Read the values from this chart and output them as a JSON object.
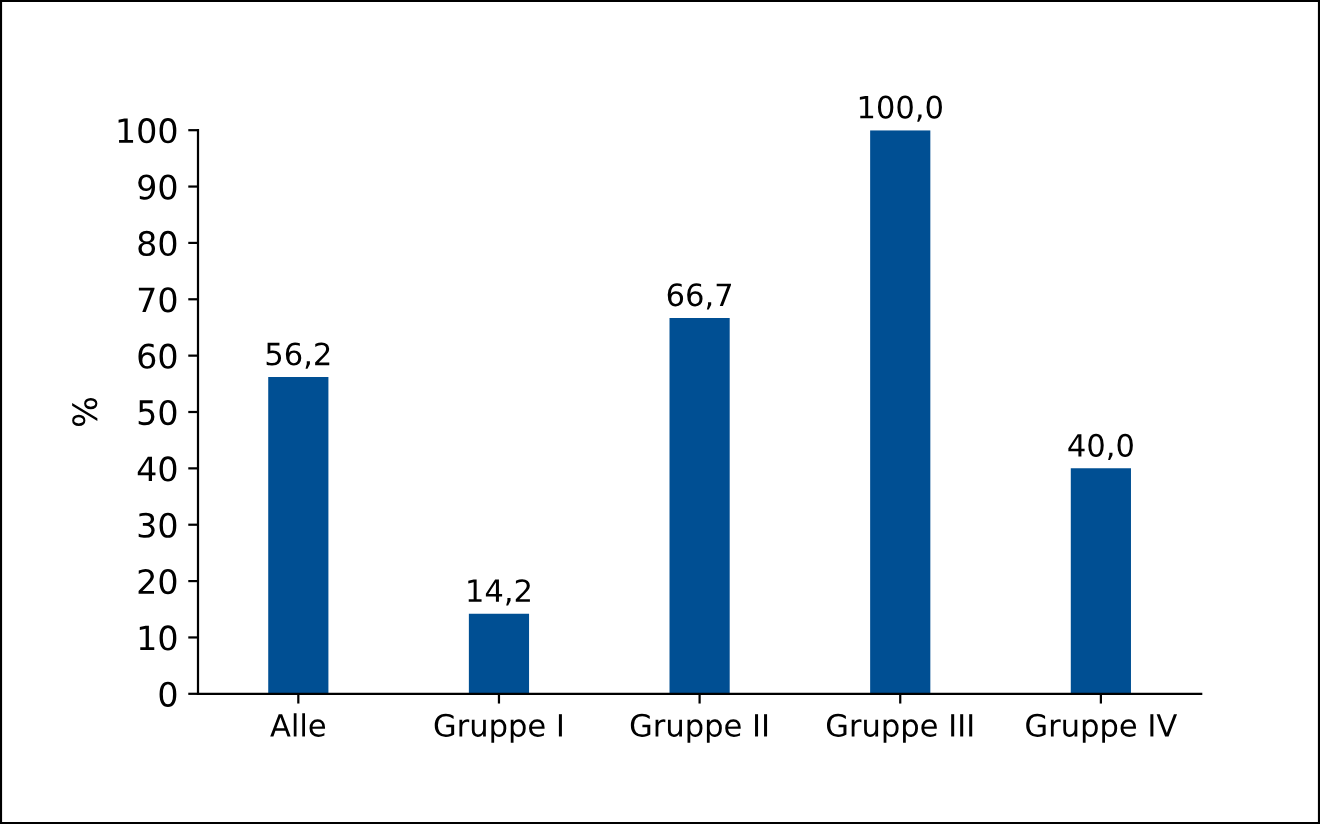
{
  "chart_data": {
    "type": "bar",
    "ylabel": "%",
    "categories": [
      "Alle",
      "Gruppe I",
      "Gruppe II",
      "Gruppe III",
      "Gruppe IV"
    ],
    "values": [
      56.2,
      14.2,
      66.7,
      100.0,
      40.0
    ],
    "value_labels": [
      "56,2",
      "14,2",
      "66,7",
      "100,0",
      "40,0"
    ],
    "color": "#004f93",
    "ylim": [
      0,
      100
    ],
    "yticks": [
      0,
      10,
      20,
      30,
      40,
      50,
      60,
      70,
      80,
      90,
      100
    ],
    "grid": false
  }
}
